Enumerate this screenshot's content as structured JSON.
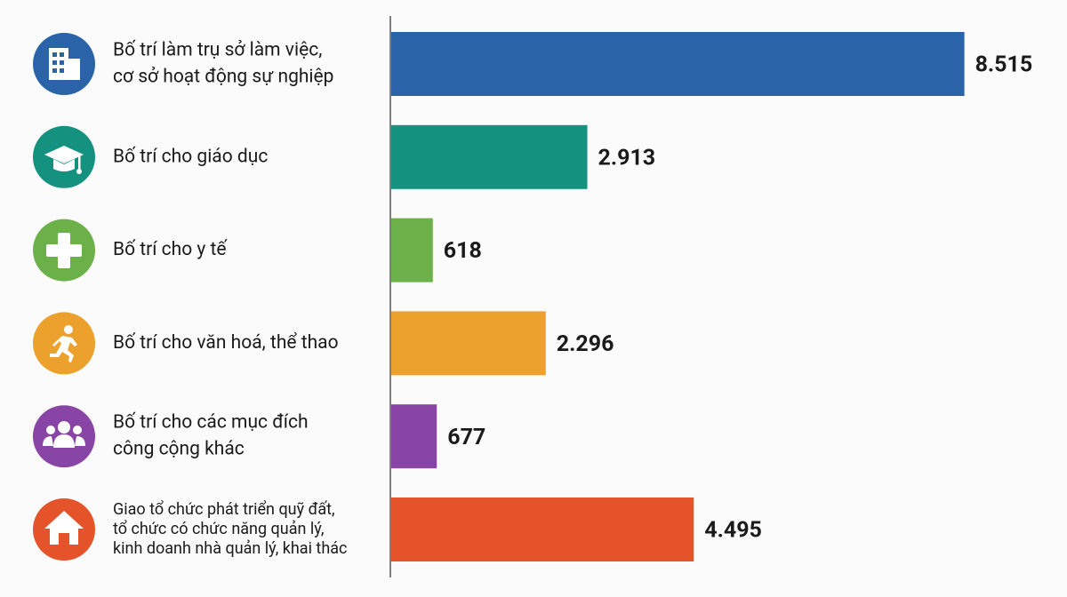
{
  "chart_data": {
    "type": "bar",
    "orientation": "horizontal",
    "categories": [
      [
        "Bố trí làm trụ sở làm việc,",
        "cơ sở hoạt động sự nghiệp"
      ],
      [
        "Bố trí cho giáo dục"
      ],
      [
        "Bố trí cho y tế"
      ],
      [
        "Bố trí cho văn hoá, thể thao"
      ],
      [
        "Bố trí cho các mục đích",
        "công cộng khác"
      ],
      [
        "Giao tổ chức phát triển quỹ đất,",
        "tổ chức có chức năng quản lý,",
        "kinh doanh nhà quản lý, khai thác"
      ]
    ],
    "values": [
      8515,
      2913,
      618,
      2296,
      677,
      4495
    ],
    "value_labels": [
      "8.515",
      "2.913",
      "618",
      "2.296",
      "677",
      "4.495"
    ],
    "colors": [
      "#2b63a8",
      "#14917f",
      "#6bb048",
      "#eca12c",
      "#8845a6",
      "#e4532a"
    ],
    "xlim": [
      0,
      10000
    ]
  }
}
